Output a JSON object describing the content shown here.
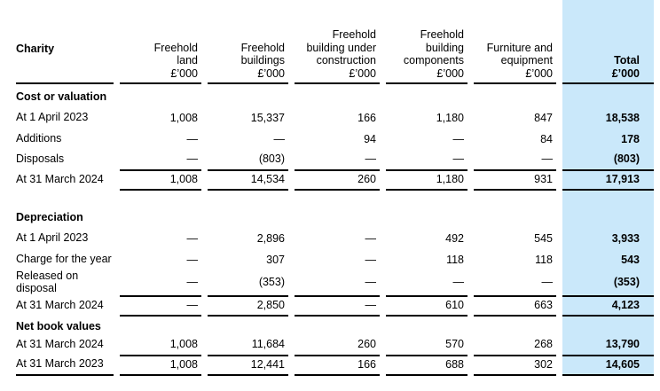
{
  "colors": {
    "highlight": "#cae8fa",
    "rule": "#000000",
    "text": "#000000",
    "background": "#ffffff"
  },
  "table": {
    "header": {
      "charity": "Charity",
      "freehold_land": "Freehold\nland\n£’000",
      "freehold_buildings": "Freehold\nbuildings\n£’000",
      "freehold_building_under_construction": "Freehold\nbuilding under\nconstruction\n£’000",
      "freehold_building_components": "Freehold\nbuilding\ncomponents\n£’000",
      "furniture_and_equipment": "Furniture and\nequipment\n£’000",
      "total": "Total\n£’000"
    },
    "rows": [
      {
        "label": "Cost or valuation"
      },
      {
        "label": "At 1 April 2023",
        "land": "1,008",
        "buildings": "15,337",
        "construction": "166",
        "components": "1,180",
        "furniture": "847",
        "total": "18,538"
      },
      {
        "label": "Additions",
        "land": "—",
        "buildings": "—",
        "construction": "94",
        "components": "—",
        "furniture": "84",
        "total": "178"
      },
      {
        "label": "Disposals",
        "land": "—",
        "buildings": "(803)",
        "construction": "—",
        "components": "—",
        "furniture": "—",
        "total": "(803)"
      },
      {
        "label": "At 31 March 2024",
        "land": "1,008",
        "buildings": "14,534",
        "construction": "260",
        "components": "1,180",
        "furniture": "931",
        "total": "17,913"
      },
      {
        "label": ""
      },
      {
        "label": "Depreciation"
      },
      {
        "label": "At 1 April 2023",
        "land": "—",
        "buildings": "2,896",
        "construction": "—",
        "components": "492",
        "furniture": "545",
        "total": "3,933"
      },
      {
        "label": "Charge for the year",
        "land": "—",
        "buildings": "307",
        "construction": "—",
        "components": "118",
        "furniture": "118",
        "total": "543"
      },
      {
        "label": "Released on disposal",
        "land": "—",
        "buildings": "(353)",
        "construction": "—",
        "components": "—",
        "furniture": "—",
        "total": "(353)"
      },
      {
        "label": "At 31 March 2024",
        "land": "—",
        "buildings": "2,850",
        "construction": "—",
        "components": "610",
        "furniture": "663",
        "total": "4,123"
      },
      {
        "label": "Net book values"
      },
      {
        "label": "At 31 March 2024",
        "land": "1,008",
        "buildings": "11,684",
        "construction": "260",
        "components": "570",
        "furniture": "268",
        "total": "13,790"
      },
      {
        "label": "At 31 March 2023",
        "land": "1,008",
        "buildings": "12,441",
        "construction": "166",
        "components": "688",
        "furniture": "302",
        "total": "14,605"
      }
    ]
  }
}
